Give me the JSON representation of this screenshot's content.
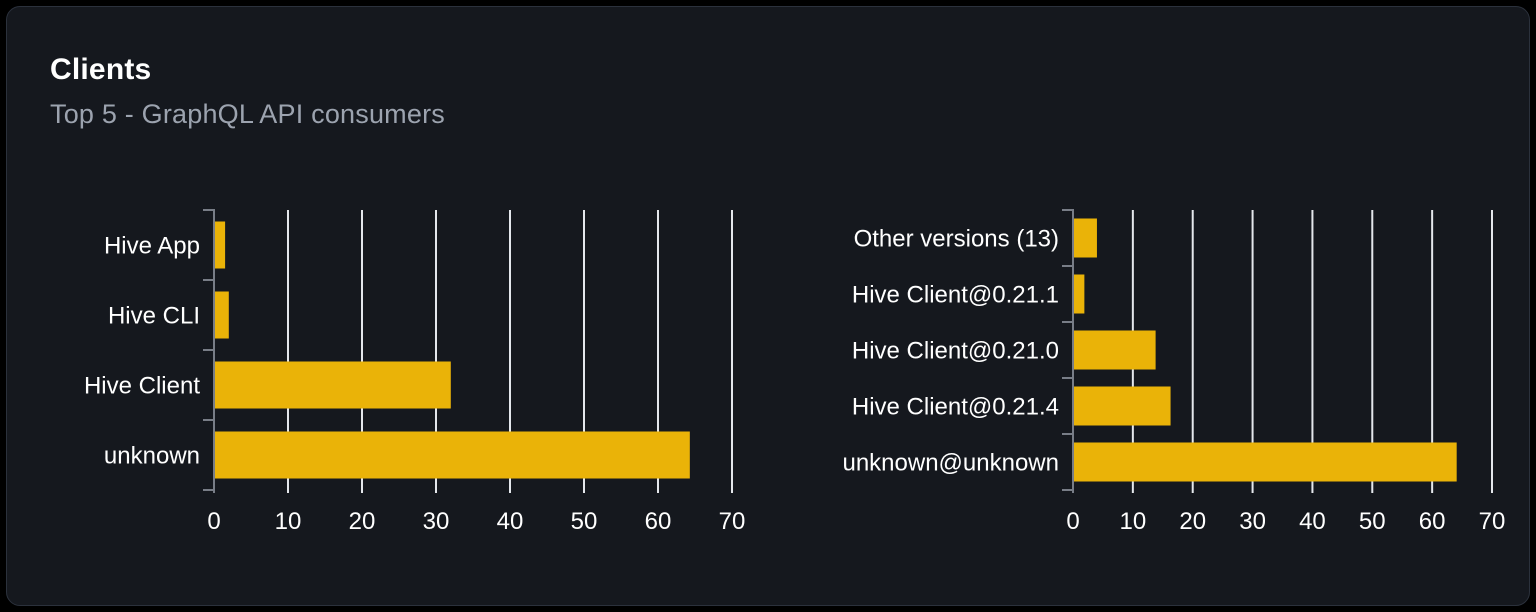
{
  "card": {
    "title": "Clients",
    "subtitle": "Top 5 - GraphQL API consumers"
  },
  "colors": {
    "page_background": "#000000",
    "card_background": "#15181e",
    "card_border": "#2b313c",
    "bar": "#eab308",
    "gridline": "#e4e7ec",
    "axis": "#787d87",
    "tick_label": "#ffffff",
    "category_label": "#ffffff",
    "subtitle": "#9ca3af"
  },
  "chart_data": [
    {
      "type": "bar",
      "name": "clients-by-name",
      "orientation": "horizontal",
      "title": "",
      "xlabel": "",
      "ylabel": "",
      "categories": [
        "Hive App",
        "Hive CLI",
        "Hive Client",
        "unknown"
      ],
      "values": [
        1.5,
        2,
        32,
        64.3
      ],
      "xlim": [
        0,
        70
      ],
      "xticks": [
        0,
        10,
        20,
        30,
        40,
        50,
        60,
        70
      ],
      "grid": true,
      "legend": false,
      "bar_color": "#eab308"
    },
    {
      "type": "bar",
      "name": "clients-by-version",
      "orientation": "horizontal",
      "title": "",
      "xlabel": "",
      "ylabel": "",
      "categories": [
        "Other versions (13)",
        "Hive Client@0.21.1",
        "Hive Client@0.21.0",
        "Hive Client@0.21.4",
        "unknown@unknown"
      ],
      "values": [
        4,
        1.9,
        13.8,
        16.3,
        64.1
      ],
      "xlim": [
        0,
        70
      ],
      "xticks": [
        0,
        10,
        20,
        30,
        40,
        50,
        60,
        70
      ],
      "grid": true,
      "legend": false,
      "bar_color": "#eab308"
    }
  ]
}
